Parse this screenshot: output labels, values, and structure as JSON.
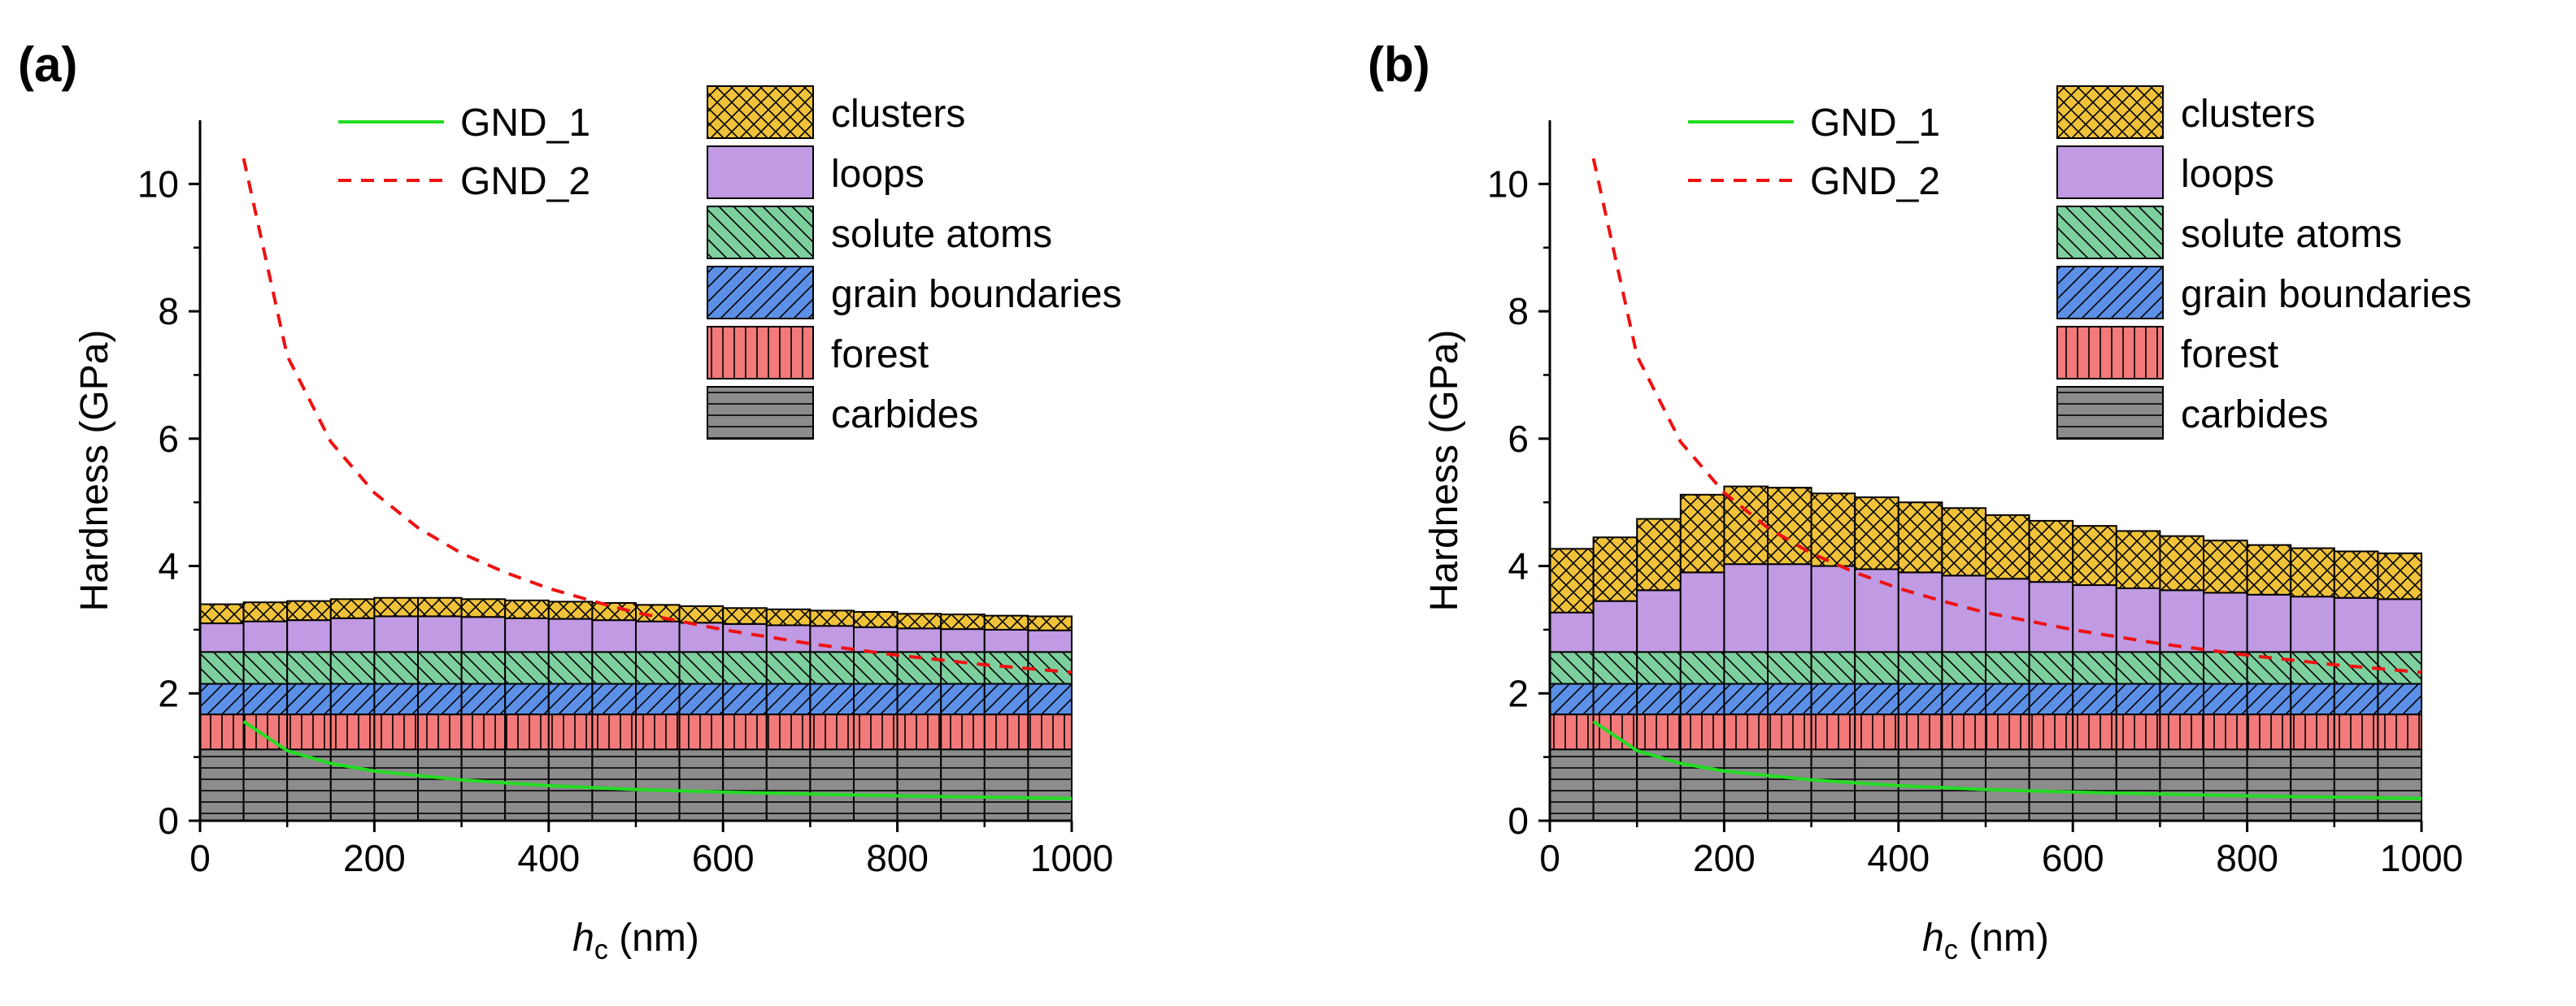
{
  "chart_data": [
    {
      "panel": "(a)",
      "type": "stacked-bar-with-lines",
      "xlabel_main": "h",
      "xlabel_sub": "c",
      "xlabel_unit": " (nm)",
      "ylabel": "Hardness (GPa)",
      "xlim": [
        0,
        1000
      ],
      "ylim": [
        0,
        11
      ],
      "xticks": [
        0,
        200,
        400,
        600,
        800,
        1000
      ],
      "yticks": [
        0,
        2,
        4,
        6,
        8,
        10
      ],
      "bin_width": 50,
      "bin_starts": [
        0,
        50,
        100,
        150,
        200,
        250,
        300,
        350,
        400,
        450,
        500,
        550,
        600,
        650,
        700,
        750,
        800,
        850,
        900,
        950
      ],
      "components": [
        {
          "name": "carbides",
          "values": [
            1.12,
            1.12,
            1.12,
            1.12,
            1.12,
            1.12,
            1.12,
            1.12,
            1.12,
            1.12,
            1.12,
            1.12,
            1.12,
            1.12,
            1.12,
            1.12,
            1.12,
            1.12,
            1.12,
            1.12
          ]
        },
        {
          "name": "forest",
          "values": [
            0.55,
            0.55,
            0.55,
            0.55,
            0.55,
            0.55,
            0.55,
            0.55,
            0.55,
            0.55,
            0.55,
            0.55,
            0.55,
            0.55,
            0.55,
            0.55,
            0.55,
            0.55,
            0.55,
            0.55
          ]
        },
        {
          "name": "grain boundaries",
          "values": [
            0.48,
            0.48,
            0.48,
            0.48,
            0.48,
            0.48,
            0.48,
            0.48,
            0.48,
            0.48,
            0.48,
            0.48,
            0.48,
            0.48,
            0.48,
            0.48,
            0.48,
            0.48,
            0.48,
            0.48
          ]
        },
        {
          "name": "solute atoms",
          "values": [
            0.5,
            0.5,
            0.5,
            0.5,
            0.5,
            0.5,
            0.5,
            0.5,
            0.5,
            0.5,
            0.5,
            0.5,
            0.5,
            0.5,
            0.5,
            0.5,
            0.5,
            0.5,
            0.5,
            0.5
          ]
        },
        {
          "name": "loops",
          "values": [
            0.45,
            0.48,
            0.5,
            0.53,
            0.56,
            0.56,
            0.55,
            0.53,
            0.52,
            0.5,
            0.48,
            0.46,
            0.44,
            0.42,
            0.41,
            0.39,
            0.37,
            0.36,
            0.35,
            0.34
          ]
        },
        {
          "name": "clusters",
          "values": [
            0.3,
            0.3,
            0.3,
            0.3,
            0.29,
            0.29,
            0.28,
            0.28,
            0.27,
            0.27,
            0.26,
            0.26,
            0.25,
            0.25,
            0.24,
            0.24,
            0.23,
            0.23,
            0.22,
            0.22
          ]
        }
      ],
      "lines": [
        {
          "name": "GND_1",
          "x": [
            50,
            100,
            150,
            200,
            300,
            400,
            500,
            600,
            700,
            800,
            900,
            1000
          ],
          "y": [
            1.56,
            1.1,
            0.9,
            0.78,
            0.64,
            0.55,
            0.49,
            0.45,
            0.42,
            0.39,
            0.37,
            0.35
          ]
        },
        {
          "name": "GND_2",
          "x": [
            50,
            100,
            150,
            200,
            250,
            300,
            350,
            400,
            450,
            500,
            600,
            700,
            800,
            900,
            1000
          ],
          "y": [
            10.4,
            7.3,
            5.95,
            5.15,
            4.6,
            4.2,
            3.9,
            3.65,
            3.45,
            3.27,
            3.0,
            2.78,
            2.6,
            2.45,
            2.33
          ]
        }
      ]
    },
    {
      "panel": "(b)",
      "type": "stacked-bar-with-lines",
      "xlabel_main": "h",
      "xlabel_sub": "c",
      "xlabel_unit": " (nm)",
      "ylabel": "Hardness (GPa)",
      "xlim": [
        0,
        1000
      ],
      "ylim": [
        0,
        11
      ],
      "xticks": [
        0,
        200,
        400,
        600,
        800,
        1000
      ],
      "yticks": [
        0,
        2,
        4,
        6,
        8,
        10
      ],
      "bin_width": 50,
      "bin_starts": [
        0,
        50,
        100,
        150,
        200,
        250,
        300,
        350,
        400,
        450,
        500,
        550,
        600,
        650,
        700,
        750,
        800,
        850,
        900,
        950
      ],
      "components": [
        {
          "name": "carbides",
          "values": [
            1.12,
            1.12,
            1.12,
            1.12,
            1.12,
            1.12,
            1.12,
            1.12,
            1.12,
            1.12,
            1.12,
            1.12,
            1.12,
            1.12,
            1.12,
            1.12,
            1.12,
            1.12,
            1.12,
            1.12
          ]
        },
        {
          "name": "forest",
          "values": [
            0.55,
            0.55,
            0.55,
            0.55,
            0.55,
            0.55,
            0.55,
            0.55,
            0.55,
            0.55,
            0.55,
            0.55,
            0.55,
            0.55,
            0.55,
            0.55,
            0.55,
            0.55,
            0.55,
            0.55
          ]
        },
        {
          "name": "grain boundaries",
          "values": [
            0.48,
            0.48,
            0.48,
            0.48,
            0.48,
            0.48,
            0.48,
            0.48,
            0.48,
            0.48,
            0.48,
            0.48,
            0.48,
            0.48,
            0.48,
            0.48,
            0.48,
            0.48,
            0.48,
            0.48
          ]
        },
        {
          "name": "solute atoms",
          "values": [
            0.5,
            0.5,
            0.5,
            0.5,
            0.5,
            0.5,
            0.5,
            0.5,
            0.5,
            0.5,
            0.5,
            0.5,
            0.5,
            0.5,
            0.5,
            0.5,
            0.5,
            0.5,
            0.5,
            0.5
          ]
        },
        {
          "name": "loops",
          "values": [
            0.62,
            0.8,
            0.97,
            1.25,
            1.38,
            1.38,
            1.35,
            1.3,
            1.25,
            1.2,
            1.15,
            1.1,
            1.05,
            1.0,
            0.97,
            0.93,
            0.9,
            0.87,
            0.85,
            0.83
          ]
        },
        {
          "name": "clusters",
          "values": [
            1.0,
            1.0,
            1.12,
            1.22,
            1.22,
            1.2,
            1.14,
            1.13,
            1.1,
            1.06,
            1.0,
            0.96,
            0.93,
            0.9,
            0.85,
            0.82,
            0.78,
            0.76,
            0.73,
            0.72
          ]
        }
      ],
      "lines": [
        {
          "name": "GND_1",
          "x": [
            50,
            100,
            150,
            200,
            300,
            400,
            500,
            600,
            700,
            800,
            900,
            1000
          ],
          "y": [
            1.56,
            1.1,
            0.9,
            0.78,
            0.64,
            0.55,
            0.49,
            0.45,
            0.42,
            0.39,
            0.37,
            0.35
          ]
        },
        {
          "name": "GND_2",
          "x": [
            50,
            100,
            150,
            200,
            250,
            300,
            350,
            400,
            450,
            500,
            600,
            700,
            800,
            900,
            1000
          ],
          "y": [
            10.4,
            7.3,
            5.95,
            5.15,
            4.6,
            4.2,
            3.9,
            3.65,
            3.45,
            3.27,
            3.0,
            2.78,
            2.6,
            2.45,
            2.33
          ]
        }
      ]
    }
  ],
  "legend": {
    "lines": [
      {
        "name": "GND_1",
        "color": "#22dd22",
        "dash": "solid"
      },
      {
        "name": "GND_2",
        "color": "#ee1111",
        "dash": "dashed"
      }
    ],
    "components": [
      {
        "name": "clusters",
        "color": "#f0c23a",
        "pattern": "crosshatch"
      },
      {
        "name": "loops",
        "color": "#c09ae2",
        "pattern": "none"
      },
      {
        "name": "solute atoms",
        "color": "#7ecf9e",
        "pattern": "backslash"
      },
      {
        "name": "grain boundaries",
        "color": "#5c8fe6",
        "pattern": "slash"
      },
      {
        "name": "forest",
        "color": "#f27a7a",
        "pattern": "vertical"
      },
      {
        "name": "carbides",
        "color": "#8c8c8c",
        "pattern": "horizontal"
      }
    ]
  }
}
